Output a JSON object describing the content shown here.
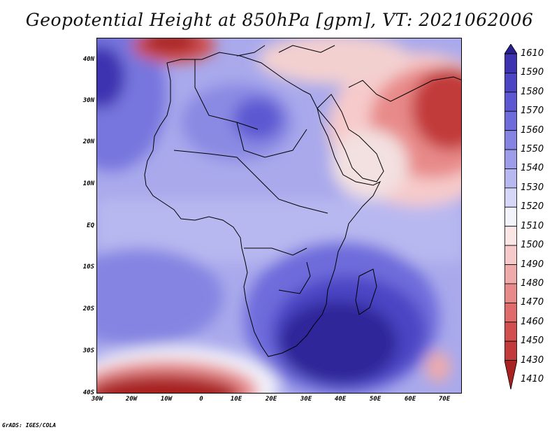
{
  "title": "Geopotential Height at 850hPa [gpm], VT: 2021062006",
  "credit": "GrADS: IGES/COLA",
  "map": {
    "region": "Africa, Arabia and surrounding oceans",
    "lon_range": [
      -30,
      75
    ],
    "lat_range": [
      -40,
      45
    ],
    "field": "geopotential_height_850hPa",
    "units": "gpm"
  },
  "lat_ticks": [
    "40N",
    "30N",
    "20N",
    "10N",
    "EQ",
    "10S",
    "20S",
    "30S",
    "40S"
  ],
  "lon_ticks": [
    "30W",
    "20W",
    "10W",
    "0",
    "10E",
    "20E",
    "30E",
    "40E",
    "50E",
    "60E",
    "70E"
  ],
  "colorbar": {
    "labels": [
      "1610",
      "1590",
      "1580",
      "1570",
      "1560",
      "1550",
      "1540",
      "1530",
      "1520",
      "1510",
      "1500",
      "1490",
      "1480",
      "1470",
      "1460",
      "1450",
      "1430",
      "1410"
    ],
    "colors": [
      "#2a1f8f",
      "#3d33b0",
      "#4b45c4",
      "#5c58d2",
      "#6e6cdb",
      "#8584e2",
      "#9d9de9",
      "#b8b8f0",
      "#d6d6f7",
      "#f3f3fb",
      "#fbe6e6",
      "#f6caca",
      "#efaaaa",
      "#e88a8a",
      "#df6b6b",
      "#d24f4f",
      "#c23a3a",
      "#a82222"
    ]
  }
}
